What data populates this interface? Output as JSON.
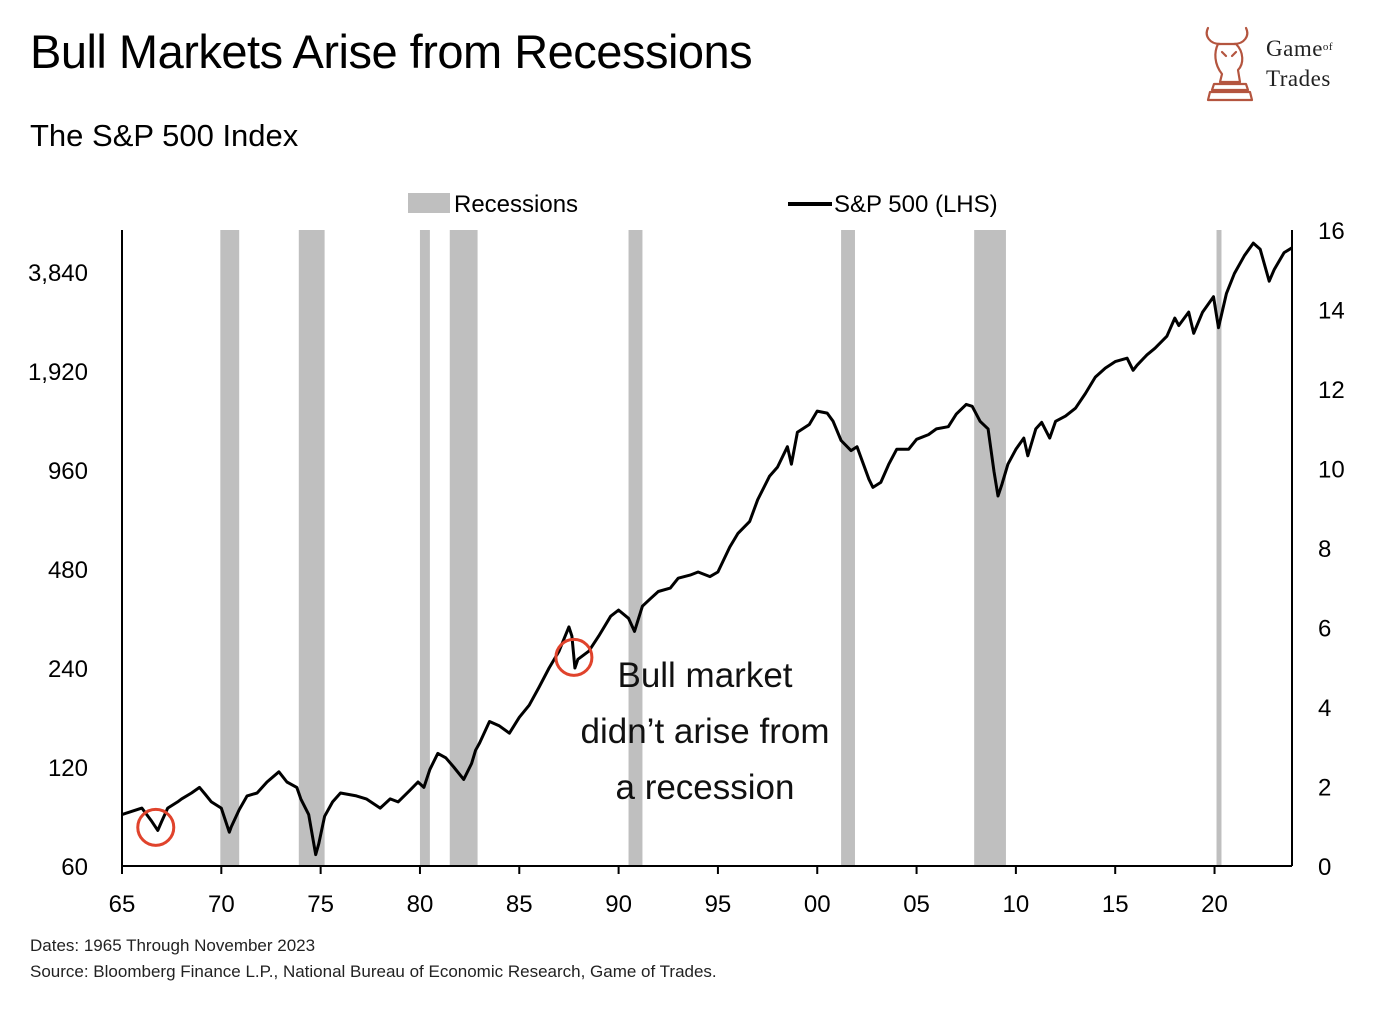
{
  "header": {
    "title": "Bull Markets Arise from Recessions",
    "subtitle": "The S&P 500 Index"
  },
  "logo": {
    "line1": "Game",
    "line1_small": "of",
    "line2": "Trades",
    "icon": "bull-chess-knight-icon"
  },
  "footer": {
    "dates": "Dates: 1965 Through November 2023",
    "source": "Source: Bloomberg Finance L.P., National Bureau of Economic Research, Game of Trades."
  },
  "annotation": {
    "lines": [
      "Bull market",
      "didn’t arise from",
      "a recession"
    ]
  },
  "colors": {
    "recession": "#bfbfbf",
    "line": "#000000",
    "circle": "#e0432c"
  },
  "chart_data": {
    "type": "line",
    "legend": {
      "position": "top-center",
      "entries": [
        "Recessions",
        "S&P 500 (LHS)"
      ]
    },
    "x_axis": {
      "range": [
        1965,
        1966.05,
        2023.9
      ],
      "ticks": [
        1965,
        1970,
        1975,
        1980,
        1985,
        1990,
        1995,
        2000,
        2005,
        2010,
        2015,
        2020
      ],
      "tick_labels": [
        "65",
        "70",
        "75",
        "80",
        "85",
        "90",
        "95",
        "00",
        "05",
        "10",
        "15",
        "20"
      ]
    },
    "left_axis": {
      "scale": "log2",
      "ticks": [
        60,
        120,
        240,
        480,
        960,
        1920,
        3840
      ],
      "tick_labels": [
        "60",
        "120",
        "240",
        "480",
        "960",
        "1,920",
        "3,840"
      ]
    },
    "right_axis": {
      "range": [
        0,
        16
      ],
      "ticks": [
        0,
        2,
        4,
        6,
        8,
        10,
        12,
        14,
        16
      ],
      "tick_labels": [
        "0",
        "2",
        "4",
        "6",
        "8",
        "10",
        "12",
        "14",
        "16"
      ]
    },
    "recessions": [
      [
        1969.95,
        1970.9
      ],
      [
        1973.9,
        1975.2
      ],
      [
        1980.0,
        1980.5
      ],
      [
        1981.5,
        1982.9
      ],
      [
        1990.5,
        1991.2
      ],
      [
        2001.2,
        2001.9
      ],
      [
        2007.9,
        2009.5
      ],
      [
        2020.1,
        2020.35
      ]
    ],
    "series": [
      {
        "name": "S&P 500 (LHS)",
        "x": [
          1965.0,
          1965.5,
          1966.0,
          1966.5,
          1966.8,
          1967.0,
          1967.3,
          1967.8,
          1968.0,
          1968.5,
          1968.9,
          1969.2,
          1969.5,
          1970.0,
          1970.4,
          1970.5,
          1970.9,
          1971.3,
          1971.8,
          1972.3,
          1972.9,
          1973.3,
          1973.8,
          1974.0,
          1974.4,
          1974.75,
          1974.9,
          1975.2,
          1975.6,
          1976.0,
          1976.8,
          1977.3,
          1978.0,
          1978.5,
          1978.9,
          1979.5,
          1979.9,
          1980.2,
          1980.5,
          1980.9,
          1981.3,
          1981.7,
          1982.2,
          1982.6,
          1982.8,
          1983.0,
          1983.5,
          1984.0,
          1984.5,
          1985.0,
          1985.5,
          1986.0,
          1986.5,
          1987.0,
          1987.5,
          1987.65,
          1987.8,
          1987.95,
          1988.5,
          1989.0,
          1989.6,
          1990.0,
          1990.5,
          1990.8,
          1991.2,
          1991.6,
          1992.0,
          1992.6,
          1993.0,
          1993.6,
          1994.0,
          1994.6,
          1995.0,
          1995.6,
          1996.0,
          1996.6,
          1997.0,
          1997.6,
          1998.0,
          1998.5,
          1998.7,
          1999.0,
          1999.6,
          2000.0,
          2000.5,
          2000.8,
          2001.2,
          2001.7,
          2002.0,
          2002.6,
          2002.8,
          2003.2,
          2003.6,
          2004.0,
          2004.6,
          2005.0,
          2005.6,
          2006.0,
          2006.6,
          2007.0,
          2007.5,
          2007.8,
          2008.2,
          2008.6,
          2008.9,
          2009.1,
          2009.3,
          2009.6,
          2010.0,
          2010.4,
          2010.6,
          2011.0,
          2011.3,
          2011.7,
          2012.0,
          2012.5,
          2013.0,
          2013.5,
          2014.0,
          2014.5,
          2015.0,
          2015.6,
          2015.9,
          2016.1,
          2016.6,
          2017.0,
          2017.6,
          2018.0,
          2018.2,
          2018.7,
          2018.95,
          2019.4,
          2019.95,
          2020.2,
          2020.6,
          2021.0,
          2021.5,
          2021.95,
          2022.3,
          2022.75,
          2023.0,
          2023.5,
          2023.9
        ],
        "values": [
          86,
          88,
          90,
          82,
          77,
          82,
          90,
          94,
          96,
          100,
          104,
          99,
          94,
          90,
          76,
          79,
          89,
          98,
          100,
          108,
          116,
          108,
          104,
          96,
          86,
          65,
          70,
          85,
          94,
          100,
          98,
          96,
          90,
          96,
          94,
          102,
          108,
          104,
          118,
          132,
          128,
          120,
          110,
          123,
          135,
          142,
          165,
          160,
          152,
          170,
          185,
          210,
          240,
          270,
          320,
          300,
          240,
          255,
          270,
          300,
          345,
          360,
          340,
          310,
          370,
          390,
          410,
          420,
          450,
          460,
          470,
          455,
          470,
          560,
          615,
          670,
          780,
          920,
          980,
          1130,
          1000,
          1250,
          1320,
          1450,
          1430,
          1350,
          1180,
          1100,
          1130,
          900,
          850,
          880,
          1000,
          1110,
          1110,
          1190,
          1230,
          1280,
          1300,
          1420,
          1520,
          1500,
          1350,
          1280,
          950,
          800,
          870,
          1000,
          1110,
          1200,
          1060,
          1280,
          1340,
          1200,
          1350,
          1400,
          1480,
          1640,
          1840,
          1960,
          2050,
          2100,
          1930,
          2000,
          2150,
          2250,
          2450,
          2780,
          2640,
          2900,
          2500,
          2900,
          3230,
          2600,
          3300,
          3800,
          4300,
          4700,
          4500,
          3600,
          3900,
          4400,
          4550
        ]
      }
    ],
    "highlights": [
      1966.7,
      1987.75
    ]
  }
}
